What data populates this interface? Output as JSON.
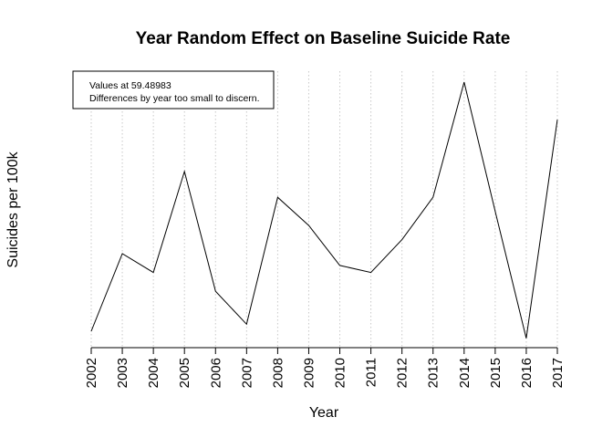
{
  "chart_data": {
    "type": "line",
    "title": "Year Random Effect on Baseline Suicide Rate",
    "xlabel": "Year",
    "ylabel": "Suicides per 100k",
    "x": [
      2002,
      2003,
      2004,
      2005,
      2006,
      2007,
      2008,
      2009,
      2010,
      2011,
      2012,
      2013,
      2014,
      2015,
      2016,
      2017
    ],
    "series": [
      {
        "values": [
          0.07,
          0.4,
          0.32,
          0.75,
          0.24,
          0.1,
          0.64,
          0.52,
          0.35,
          0.32,
          0.46,
          0.64,
          1.13,
          0.58,
          0.04,
          0.97
        ]
      }
    ],
    "ylim": [
      0,
      1.2
    ],
    "y_axis_visible": false,
    "grid": "vertical dotted",
    "annotation": {
      "lines": [
        "Values at 59.48983",
        "Differences by year too small to discern."
      ],
      "placement": "top-left"
    }
  }
}
